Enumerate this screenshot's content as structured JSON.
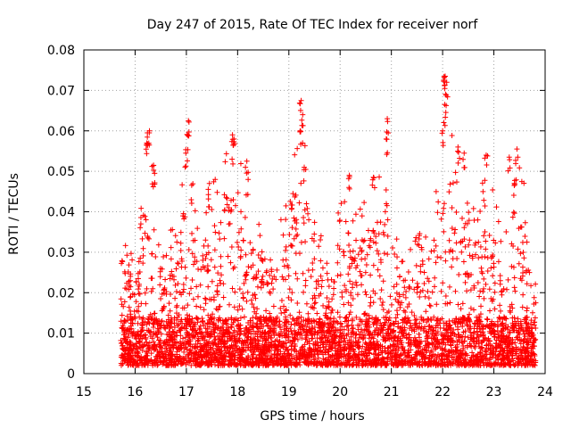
{
  "chart_data": {
    "type": "scatter",
    "title": "Day 247 of 2015, Rate Of TEC Index for receiver norf",
    "xlabel": "GPS time / hours",
    "ylabel": "ROTI / TECUs",
    "xlim": [
      15,
      24
    ],
    "ylim": [
      0,
      0.08
    ],
    "xticks": [
      "15",
      "16",
      "17",
      "18",
      "19",
      "20",
      "21",
      "22",
      "23",
      "24"
    ],
    "yticks": [
      "0",
      "0.01",
      "0.02",
      "0.03",
      "0.04",
      "0.05",
      "0.06",
      "0.07",
      "0.08"
    ],
    "grid": true,
    "marker": "+",
    "marker_color": "#ff0000",
    "time_range": [
      15.72,
      23.82
    ],
    "baseline_range": [
      0.002,
      0.014
    ],
    "upper_envelope": [
      {
        "x": 15.75,
        "y": 0.038
      },
      {
        "x": 16.0,
        "y": 0.03
      },
      {
        "x": 16.25,
        "y": 0.06
      },
      {
        "x": 16.35,
        "y": 0.052
      },
      {
        "x": 16.5,
        "y": 0.035
      },
      {
        "x": 16.8,
        "y": 0.038
      },
      {
        "x": 17.0,
        "y": 0.062
      },
      {
        "x": 17.25,
        "y": 0.035
      },
      {
        "x": 17.5,
        "y": 0.047
      },
      {
        "x": 17.9,
        "y": 0.059
      },
      {
        "x": 18.15,
        "y": 0.053
      },
      {
        "x": 18.5,
        "y": 0.032
      },
      {
        "x": 19.0,
        "y": 0.044
      },
      {
        "x": 19.25,
        "y": 0.068
      },
      {
        "x": 19.5,
        "y": 0.04
      },
      {
        "x": 19.8,
        "y": 0.033
      },
      {
        "x": 20.15,
        "y": 0.049
      },
      {
        "x": 20.5,
        "y": 0.045
      },
      {
        "x": 20.9,
        "y": 0.063
      },
      {
        "x": 21.2,
        "y": 0.03
      },
      {
        "x": 21.5,
        "y": 0.035
      },
      {
        "x": 21.8,
        "y": 0.043
      },
      {
        "x": 22.05,
        "y": 0.074
      },
      {
        "x": 22.3,
        "y": 0.058
      },
      {
        "x": 22.6,
        "y": 0.042
      },
      {
        "x": 22.9,
        "y": 0.054
      },
      {
        "x": 23.2,
        "y": 0.03
      },
      {
        "x": 23.35,
        "y": 0.053
      },
      {
        "x": 23.5,
        "y": 0.056
      },
      {
        "x": 23.8,
        "y": 0.03
      }
    ],
    "spikes": [
      {
        "x": 16.28,
        "y": 0.06
      },
      {
        "x": 16.24,
        "y": 0.0595
      },
      {
        "x": 16.22,
        "y": 0.0565
      },
      {
        "x": 16.36,
        "y": 0.0515
      },
      {
        "x": 16.38,
        "y": 0.0495
      },
      {
        "x": 16.99,
        "y": 0.0545
      },
      {
        "x": 17.02,
        "y": 0.059
      },
      {
        "x": 17.04,
        "y": 0.0625
      },
      {
        "x": 17.45,
        "y": 0.047
      },
      {
        "x": 17.9,
        "y": 0.059
      },
      {
        "x": 17.93,
        "y": 0.058
      },
      {
        "x": 18.18,
        "y": 0.0525
      },
      {
        "x": 19.22,
        "y": 0.06
      },
      {
        "x": 19.24,
        "y": 0.0675
      },
      {
        "x": 19.27,
        "y": 0.064
      },
      {
        "x": 19.3,
        "y": 0.051
      },
      {
        "x": 19.08,
        "y": 0.0445
      },
      {
        "x": 20.18,
        "y": 0.049
      },
      {
        "x": 20.65,
        "y": 0.0485
      },
      {
        "x": 20.92,
        "y": 0.063
      },
      {
        "x": 20.9,
        "y": 0.058
      },
      {
        "x": 22.02,
        "y": 0.0725
      },
      {
        "x": 22.05,
        "y": 0.0735
      },
      {
        "x": 22.08,
        "y": 0.072
      },
      {
        "x": 22.04,
        "y": 0.0665
      },
      {
        "x": 22.0,
        "y": 0.06
      },
      {
        "x": 22.3,
        "y": 0.056
      },
      {
        "x": 22.42,
        "y": 0.0545
      },
      {
        "x": 22.85,
        "y": 0.054
      },
      {
        "x": 23.3,
        "y": 0.0535
      },
      {
        "x": 23.45,
        "y": 0.0555
      },
      {
        "x": 23.4,
        "y": 0.047
      }
    ]
  }
}
